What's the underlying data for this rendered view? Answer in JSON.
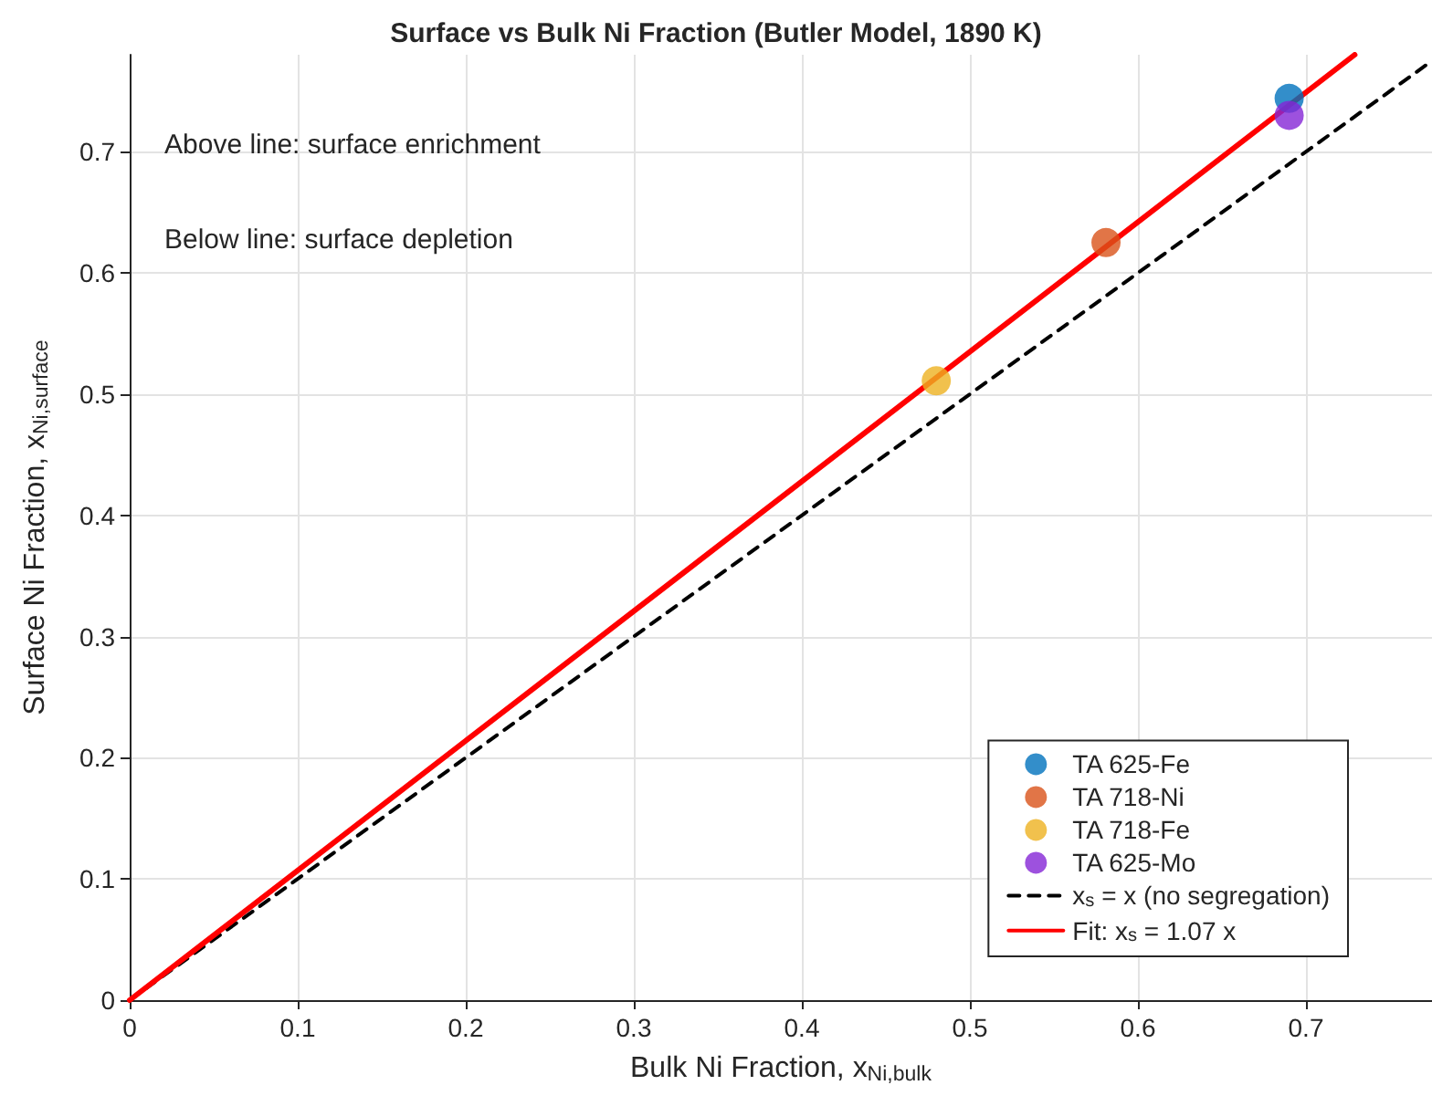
{
  "chart_data": {
    "type": "scatter",
    "title": "Surface vs Bulk Ni Fraction (Butler Model, 1890 K)",
    "xlabel": "Bulk Ni Fraction, x$_{Ni,bulk}$",
    "ylabel": "Surface Ni Fraction, x$_{Ni,surface}$",
    "annotations": [
      "Above line: surface enrichment",
      "Below line: surface depletion"
    ],
    "series": [
      {
        "name": "TA 625-Fe",
        "color": "#0072bd",
        "x": [
          0.69
        ],
        "values": [
          0.744
        ]
      },
      {
        "name": "TA 718-Ni",
        "color": "#d95319",
        "x": [
          0.581
        ],
        "values": [
          0.625
        ]
      },
      {
        "name": "TA 718-Fe",
        "color": "#edb120",
        "x": [
          0.48
        ],
        "values": [
          0.511
        ]
      },
      {
        "name": "TA 625-Mo",
        "color": "#8526d6",
        "x": [
          0.69
        ],
        "values": [
          0.73
        ]
      },
      {
        "name": "x$_{s}$ = x (no segregation)",
        "type": "line",
        "marker": "none",
        "line_style": "dashed",
        "color": "#000000",
        "x": [
          0,
          0.775
        ],
        "values": [
          0,
          0.775
        ]
      },
      {
        "name": "Fit: x$_{s}$ = 1.07 x",
        "type": "line",
        "marker": "none",
        "line_style": "solid",
        "color": "#ff0000",
        "x": [
          0,
          0.729
        ],
        "values": [
          0,
          0.78
        ]
      }
    ],
    "xlim": [
      0,
      0.775
    ],
    "ylim": [
      0,
      0.78
    ],
    "xticks": [
      0,
      0.1,
      0.2,
      0.3,
      0.4,
      0.5,
      0.6,
      0.7
    ],
    "yticks": [
      0,
      0.1,
      0.2,
      0.3,
      0.4,
      0.5,
      0.6,
      0.7
    ],
    "grid": true,
    "legend": "bottom right",
    "marker": "circle"
  }
}
